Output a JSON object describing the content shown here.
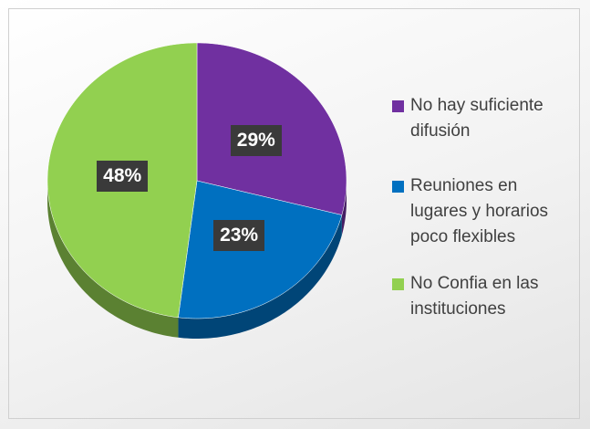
{
  "chart_data": {
    "type": "pie",
    "categories": [
      "No hay suficiente difusión",
      "Reuniones en lugares y horarios poco flexibles",
      "No Confia en las instituciones"
    ],
    "values": [
      29,
      23,
      48
    ],
    "value_labels": [
      "29%",
      "23%",
      "48%"
    ],
    "colors": [
      "#7030a0",
      "#0070c0",
      "#92d050"
    ],
    "legend": "right"
  }
}
